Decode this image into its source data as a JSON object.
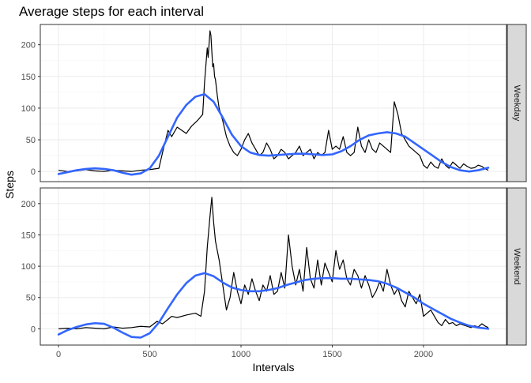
{
  "chart_data": {
    "type": "line",
    "title": "Average steps for each interval",
    "xlabel": "Intervals",
    "ylabel": "Steps",
    "xlim": [
      -100,
      2455
    ],
    "x_ticks": [
      0,
      500,
      1000,
      1500,
      2000
    ],
    "y_ticks": [
      0,
      50,
      100,
      150,
      200
    ],
    "grid": true,
    "colors": {
      "line": "#000000",
      "smooth": "#3366ff"
    },
    "panels": [
      {
        "label": "Weekday",
        "ylim": [
          -16,
          232
        ],
        "series": [
          {
            "x": [
              0,
              50,
              100,
              150,
              200,
              250,
              300,
              350,
              400,
              450,
              500,
              550,
              570,
              600,
              620,
              650,
              700,
              730,
              760,
              790,
              800,
              815,
              820,
              830,
              835,
              840,
              845,
              850,
              855,
              860,
              870,
              880,
              900,
              920,
              940,
              960,
              980,
              1000,
              1020,
              1040,
              1060,
              1080,
              1100,
              1120,
              1140,
              1160,
              1180,
              1200,
              1220,
              1240,
              1260,
              1280,
              1300,
              1320,
              1340,
              1360,
              1380,
              1400,
              1420,
              1440,
              1460,
              1480,
              1500,
              1520,
              1540,
              1560,
              1580,
              1600,
              1620,
              1640,
              1660,
              1680,
              1700,
              1720,
              1740,
              1760,
              1780,
              1800,
              1820,
              1840,
              1860,
              1880,
              1900,
              1920,
              1940,
              1960,
              1980,
              2000,
              2020,
              2040,
              2060,
              2080,
              2100,
              2120,
              2140,
              2160,
              2180,
              2200,
              2220,
              2240,
              2260,
              2280,
              2300,
              2320,
              2340,
              2355
            ],
            "y": [
              2,
              0,
              1,
              3,
              1,
              0,
              2,
              1,
              0,
              2,
              3,
              5,
              30,
              65,
              55,
              70,
              60,
              72,
              80,
              90,
              140,
              195,
              180,
              222,
              215,
              190,
              165,
              170,
              150,
              145,
              120,
              100,
              80,
              55,
              40,
              30,
              25,
              35,
              50,
              60,
              45,
              35,
              25,
              30,
              45,
              35,
              20,
              25,
              35,
              30,
              20,
              25,
              30,
              40,
              25,
              30,
              35,
              20,
              30,
              25,
              30,
              65,
              35,
              40,
              35,
              55,
              30,
              25,
              30,
              70,
              40,
              30,
              50,
              35,
              30,
              45,
              40,
              35,
              30,
              110,
              90,
              60,
              50,
              40,
              35,
              30,
              25,
              10,
              5,
              15,
              8,
              5,
              20,
              10,
              5,
              15,
              10,
              5,
              12,
              8,
              5,
              6,
              10,
              8,
              4,
              2
            ],
            "name": ""
          },
          {
            "x": [
              0,
              50,
              100,
              150,
              200,
              250,
              300,
              350,
              400,
              450,
              500,
              550,
              600,
              650,
              700,
              750,
              800,
              850,
              900,
              950,
              1000,
              1050,
              1100,
              1150,
              1200,
              1250,
              1300,
              1350,
              1400,
              1450,
              1500,
              1550,
              1600,
              1650,
              1700,
              1750,
              1800,
              1850,
              1900,
              1950,
              2000,
              2050,
              2100,
              2150,
              2200,
              2250,
              2300,
              2355
            ],
            "y": [
              -4,
              -1,
              2,
              4,
              5,
              4,
              2,
              -2,
              -5,
              -3,
              5,
              25,
              55,
              85,
              105,
              118,
              122,
              110,
              85,
              58,
              40,
              30,
              26,
              25,
              26,
              27,
              28,
              28,
              27,
              26,
              27,
              32,
              40,
              50,
              57,
              60,
              62,
              60,
              55,
              45,
              35,
              25,
              15,
              7,
              2,
              0,
              2,
              6
            ],
            "name": ""
          }
        ]
      },
      {
        "label": "Weekend",
        "ylim": [
          -26,
          225
        ],
        "series": [
          {
            "x": [
              0,
              50,
              100,
              150,
              200,
              250,
              300,
              350,
              400,
              450,
              500,
              540,
              570,
              600,
              620,
              650,
              700,
              750,
              780,
              800,
              815,
              830,
              840,
              850,
              860,
              880,
              900,
              920,
              940,
              960,
              980,
              1000,
              1020,
              1040,
              1060,
              1080,
              1100,
              1120,
              1140,
              1160,
              1180,
              1200,
              1220,
              1240,
              1260,
              1280,
              1300,
              1320,
              1340,
              1360,
              1380,
              1400,
              1420,
              1440,
              1460,
              1480,
              1500,
              1520,
              1540,
              1560,
              1580,
              1600,
              1620,
              1640,
              1660,
              1680,
              1700,
              1720,
              1740,
              1760,
              1780,
              1800,
              1820,
              1840,
              1860,
              1880,
              1900,
              1920,
              1940,
              1960,
              1980,
              2000,
              2020,
              2040,
              2060,
              2080,
              2100,
              2120,
              2140,
              2160,
              2180,
              2200,
              2220,
              2240,
              2260,
              2280,
              2300,
              2320,
              2340,
              2355
            ],
            "y": [
              0,
              1,
              0,
              2,
              1,
              0,
              3,
              1,
              2,
              4,
              3,
              12,
              8,
              15,
              20,
              18,
              22,
              25,
              20,
              60,
              130,
              180,
              210,
              170,
              140,
              110,
              70,
              30,
              50,
              90,
              60,
              40,
              70,
              55,
              80,
              60,
              45,
              70,
              60,
              85,
              55,
              60,
              90,
              65,
              150,
              100,
              70,
              95,
              60,
              130,
              80,
              65,
              110,
              70,
              105,
              90,
              75,
              125,
              95,
              110,
              80,
              70,
              95,
              85,
              65,
              85,
              70,
              50,
              60,
              75,
              60,
              95,
              70,
              55,
              65,
              45,
              35,
              60,
              50,
              40,
              55,
              20,
              25,
              30,
              20,
              10,
              5,
              15,
              8,
              10,
              5,
              8,
              6,
              4,
              2,
              5,
              3,
              8,
              4,
              2
            ],
            "name": ""
          },
          {
            "x": [
              0,
              50,
              100,
              150,
              200,
              250,
              300,
              350,
              400,
              450,
              500,
              550,
              600,
              650,
              700,
              750,
              800,
              850,
              900,
              950,
              1000,
              1050,
              1100,
              1150,
              1200,
              1250,
              1300,
              1350,
              1400,
              1450,
              1500,
              1550,
              1600,
              1650,
              1700,
              1750,
              1800,
              1850,
              1900,
              1950,
              2000,
              2050,
              2100,
              2150,
              2200,
              2250,
              2300,
              2355
            ],
            "y": [
              -9,
              -2,
              3,
              7,
              9,
              8,
              2,
              -6,
              -13,
              -14,
              -7,
              10,
              33,
              55,
              73,
              85,
              89,
              84,
              74,
              66,
              62,
              60,
              60,
              62,
              65,
              70,
              74,
              78,
              80,
              81,
              81,
              80,
              80,
              79,
              78,
              76,
              72,
              66,
              58,
              50,
              40,
              32,
              24,
              16,
              10,
              5,
              2,
              0
            ],
            "name": ""
          }
        ]
      }
    ]
  }
}
